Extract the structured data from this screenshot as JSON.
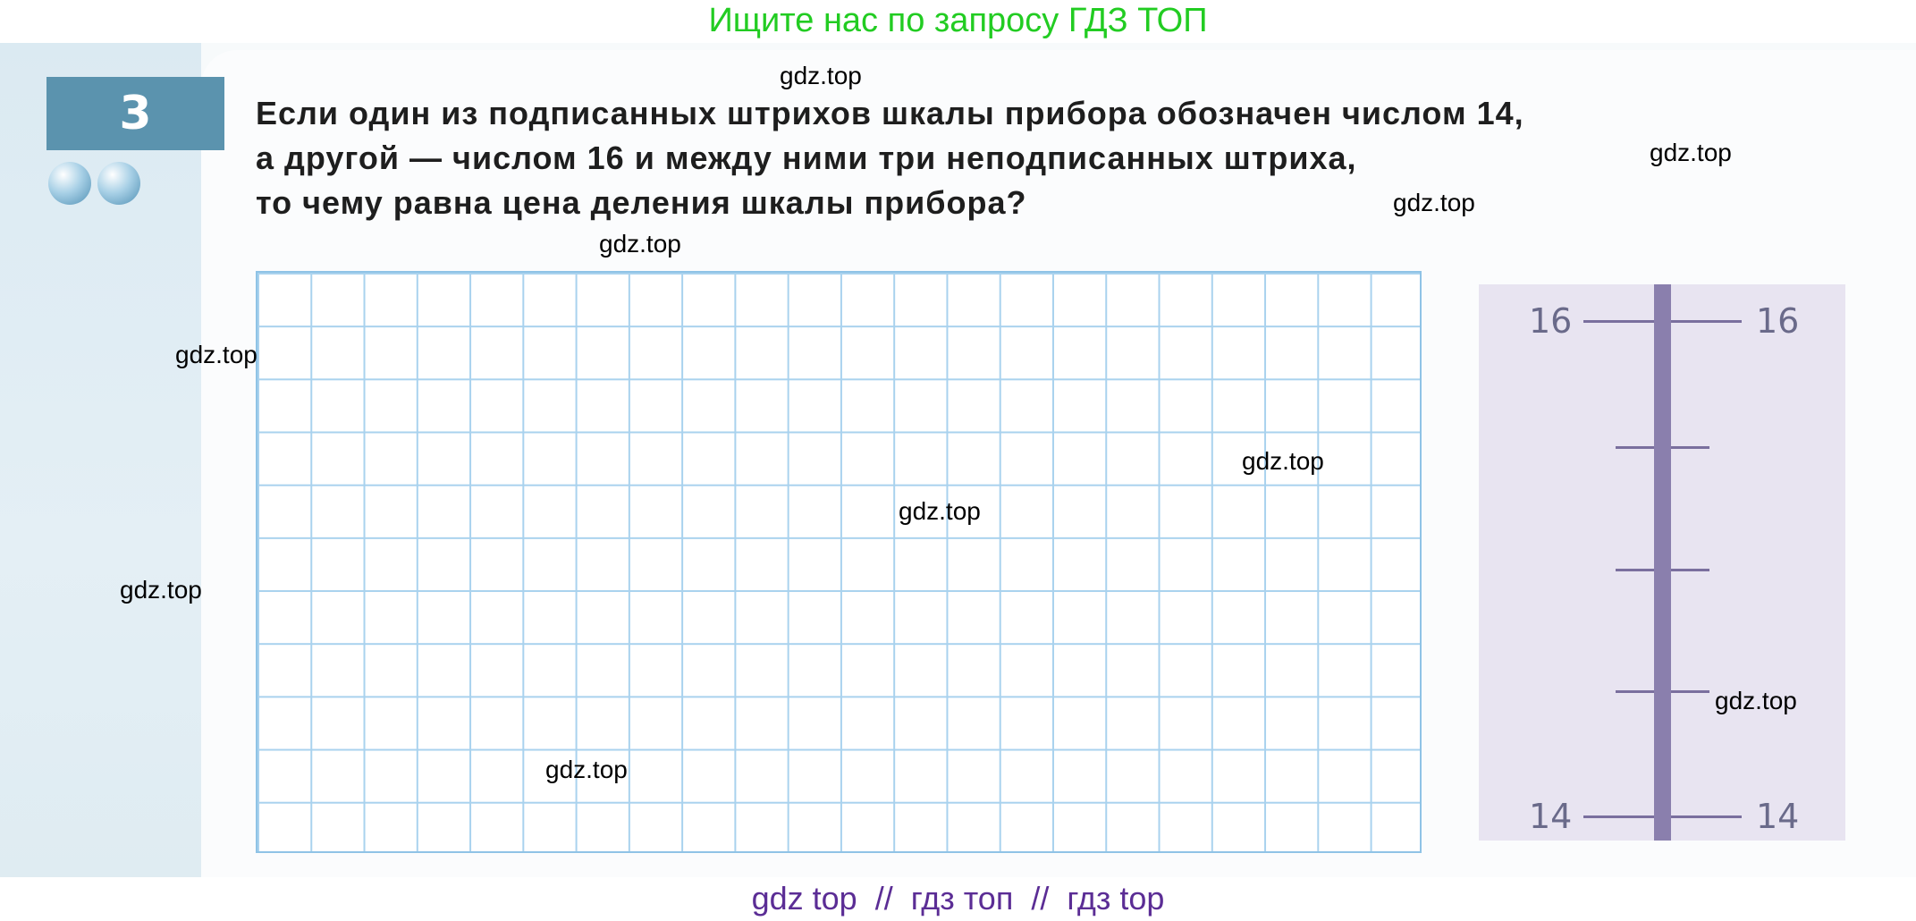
{
  "top_banner": "Ищите нас по запросу ГДЗ ТОП",
  "task": {
    "number": "3",
    "difficulty_dots": 2,
    "question_lines": [
      "Если один из подписанных штрихов шкалы прибора обозначен числом 14,",
      "а другой — числом 16 и между ними три неподписанных штриха,",
      "то чему равна цена деления шкалы прибора?"
    ]
  },
  "answer_grid": {
    "columns": 22,
    "rows": 11,
    "line_color": "#a9d2ee"
  },
  "instrument_scale": {
    "top_label_left": "16",
    "top_label_right": "16",
    "bottom_label_left": "14",
    "bottom_label_right": "14",
    "unlabeled_ticks": 3,
    "bar_color": "#8a7fad",
    "panel_color": "#e8e4f1"
  },
  "watermarks": [
    "gdz.top",
    "gdz.top",
    "gdz.top",
    "gdz.top",
    "gdz.top",
    "gdz.top",
    "gdz.top",
    "gdz.top",
    "gdz.top",
    "gdz.top"
  ],
  "bottom_banner": "gdz top  //  гдз топ  //  гдз top",
  "colors": {
    "banner_green": "#22cc22",
    "banner_purple": "#5b2d95",
    "task_box": "#5b93ae"
  }
}
